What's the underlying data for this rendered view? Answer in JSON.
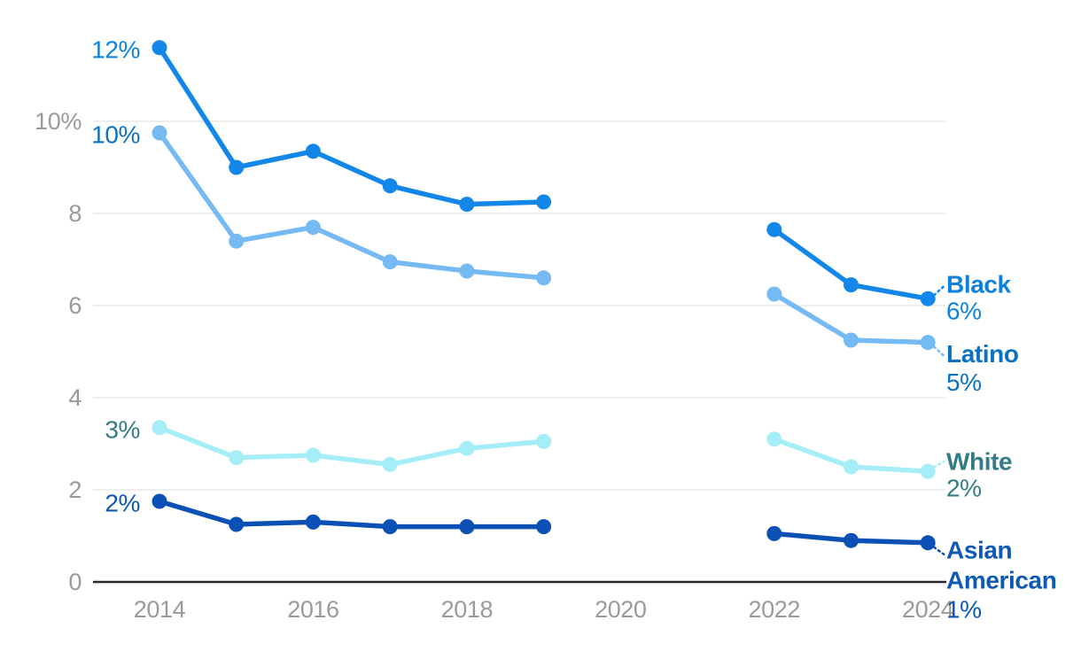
{
  "chart_data": {
    "type": "line",
    "x": [
      2014,
      2015,
      2016,
      2017,
      2018,
      2019,
      2022,
      2023,
      2024
    ],
    "series": [
      {
        "name": "Black",
        "name_lines": [
          "Black"
        ],
        "color": "#1287e9",
        "label_color": "#0d82dd",
        "start_label": "12%",
        "end_label": "6%",
        "values": [
          11.6,
          9.0,
          9.35,
          8.6,
          8.2,
          8.25,
          7.65,
          6.45,
          6.15
        ]
      },
      {
        "name": "Latino",
        "name_lines": [
          "Latino"
        ],
        "color": "#76baf3",
        "label_color": "#0b72c2",
        "start_label": "10%",
        "end_label": "5%",
        "values": [
          9.75,
          7.4,
          7.7,
          6.95,
          6.75,
          6.6,
          6.25,
          5.25,
          5.2
        ]
      },
      {
        "name": "White",
        "name_lines": [
          "White"
        ],
        "color": "#a6eef7",
        "label_color": "#337c87",
        "start_label": "3%",
        "end_label": "2%",
        "values": [
          3.35,
          2.7,
          2.75,
          2.55,
          2.9,
          3.05,
          3.1,
          2.5,
          2.4
        ]
      },
      {
        "name": "Asian American",
        "name_lines": [
          "Asian",
          "American"
        ],
        "color": "#0a50b5",
        "label_color": "#0d59b3",
        "start_label": "2%",
        "end_label": "1%",
        "values": [
          1.75,
          1.25,
          1.3,
          1.2,
          1.2,
          1.2,
          1.05,
          0.9,
          0.85
        ]
      }
    ],
    "x_ticks": [
      "2014",
      "2016",
      "2018",
      "2020",
      "2022",
      "2024"
    ],
    "x_tick_years": [
      2014,
      2016,
      2018,
      2020,
      2022,
      2024
    ],
    "y_ticks": [
      {
        "value": 10,
        "label": "10%"
      },
      {
        "value": 8,
        "label": "8"
      },
      {
        "value": 6,
        "label": "6"
      },
      {
        "value": 4,
        "label": "4"
      },
      {
        "value": 2,
        "label": "2"
      },
      {
        "value": 0,
        "label": "0"
      }
    ],
    "ylim": [
      0,
      12.3
    ],
    "grid": true,
    "legend_position": "right-of-last-point",
    "colors": {
      "grid": "#e7e7e7",
      "axis": "#2a2a2a",
      "tick_text": "#9a9a9a",
      "background": "#ffffff"
    }
  }
}
